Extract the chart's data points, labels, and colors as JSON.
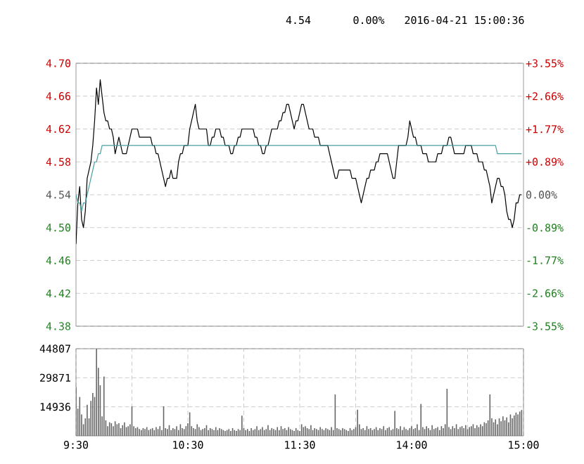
{
  "chart_data": [
    {
      "type": "line",
      "annotations": [
        "4.54",
        "0.00%",
        "2016-04-21 15:00:36"
      ],
      "categories": [
        null,
        null,
        null,
        null,
        null,
        null,
        null,
        null,
        null,
        null,
        null,
        null,
        null,
        null,
        null,
        null,
        null,
        null,
        null,
        null,
        null,
        null,
        null,
        null,
        null,
        null,
        null,
        null,
        null,
        null,
        null,
        null,
        null,
        null,
        null,
        null,
        null,
        null,
        null,
        null,
        null,
        null,
        null,
        null,
        null,
        null,
        null,
        null,
        null,
        null,
        null,
        null,
        null,
        null,
        null,
        null,
        null,
        null,
        null,
        null,
        null,
        null,
        null,
        null,
        null,
        null,
        null,
        null,
        null,
        null,
        null,
        null,
        null,
        null,
        null,
        null,
        null,
        null,
        null,
        null,
        null,
        null,
        null,
        null,
        null,
        null,
        null,
        null,
        null,
        null,
        null,
        null,
        null,
        null,
        null,
        null,
        null,
        null,
        null,
        null,
        null,
        null,
        null,
        null,
        null,
        null,
        null,
        null,
        null,
        null,
        null,
        null,
        null,
        null,
        null,
        null,
        null,
        null,
        null,
        null,
        null,
        null,
        null,
        null,
        null,
        null,
        null,
        null,
        null,
        null,
        null,
        null,
        null,
        null,
        null,
        null,
        null,
        null,
        null,
        null,
        null,
        null,
        null,
        null,
        null,
        null,
        null,
        null,
        null,
        null,
        null,
        null,
        null,
        null,
        null,
        null,
        null,
        null,
        null,
        null,
        null,
        null,
        null,
        null,
        null,
        null,
        null,
        null,
        null,
        null,
        null,
        null,
        null,
        null,
        null,
        null,
        null,
        null,
        null,
        null,
        null,
        null,
        null,
        null,
        null,
        null,
        null,
        null,
        null,
        null,
        null,
        null,
        null,
        null,
        null,
        null,
        null,
        null,
        null,
        null,
        null,
        null,
        null,
        null,
        null,
        null,
        null,
        null,
        null,
        null,
        null,
        null,
        null,
        null,
        null,
        null,
        null,
        null,
        null,
        null,
        null,
        null,
        null,
        null,
        null,
        null,
        null,
        null,
        null,
        null,
        null,
        null,
        null,
        null,
        null,
        null,
        null,
        null,
        null,
        null,
        null
      ],
      "ylim": [
        4.38,
        4.7
      ],
      "yticks": [
        {
          "value": 4.38,
          "label": "4.38"
        },
        {
          "value": 4.42,
          "label": "4.42"
        },
        {
          "value": 4.46,
          "label": "4.46"
        },
        {
          "value": 4.5,
          "label": "4.50"
        },
        {
          "value": 4.54,
          "label": "4.54"
        },
        {
          "value": 4.58,
          "label": "4.58"
        },
        {
          "value": 4.62,
          "label": "4.62"
        },
        {
          "value": 4.66,
          "label": "4.66"
        },
        {
          "value": 4.7,
          "label": "4.70"
        }
      ],
      "y2lim": [
        -3.55,
        3.55
      ],
      "y2ticks": [
        {
          "value": -3.55,
          "label": "-3.55%"
        },
        {
          "value": -2.66,
          "label": "-2.66%"
        },
        {
          "value": -1.77,
          "label": "-1.77%"
        },
        {
          "value": -0.89,
          "label": "-0.89%"
        },
        {
          "value": 0,
          "label": "0.00%"
        },
        {
          "value": 0.89,
          "label": "+0.89%"
        },
        {
          "value": 1.77,
          "label": "+1.77%"
        },
        {
          "value": 2.66,
          "label": "+2.66%"
        },
        {
          "value": 3.55,
          "label": "+3.55%"
        }
      ],
      "grid": true,
      "series": [
        {
          "color": "#000000",
          "values": [
            4.48,
            4.53,
            4.55,
            4.51,
            4.5,
            4.52,
            4.56,
            4.57,
            4.58,
            4.6,
            4.63,
            4.67,
            4.65,
            4.68,
            4.66,
            4.64,
            4.63,
            4.63,
            4.62,
            4.62,
            4.61,
            4.59,
            4.6,
            4.61,
            4.6,
            4.59,
            4.59,
            4.59,
            4.6,
            4.61,
            4.62,
            4.62,
            4.62,
            4.62,
            4.61,
            4.61,
            4.61,
            4.61,
            4.61,
            4.61,
            4.61,
            4.6,
            4.6,
            4.59,
            4.59,
            4.58,
            4.57,
            4.56,
            4.55,
            4.56,
            4.56,
            4.57,
            4.56,
            4.56,
            4.56,
            4.58,
            4.59,
            4.59,
            4.6,
            4.6,
            4.6,
            4.62,
            4.63,
            4.64,
            4.65,
            4.63,
            4.62,
            4.62,
            4.62,
            4.62,
            4.62,
            4.6,
            4.6,
            4.61,
            4.61,
            4.62,
            4.62,
            4.62,
            4.61,
            4.61,
            4.6,
            4.6,
            4.6,
            4.59,
            4.59,
            4.6,
            4.6,
            4.61,
            4.61,
            4.62,
            4.62,
            4.62,
            4.62,
            4.62,
            4.62,
            4.62,
            4.61,
            4.61,
            4.6,
            4.6,
            4.59,
            4.59,
            4.6,
            4.6,
            4.61,
            4.62,
            4.62,
            4.62,
            4.62,
            4.63,
            4.63,
            4.64,
            4.64,
            4.65,
            4.65,
            4.64,
            4.63,
            4.62,
            4.63,
            4.63,
            4.64,
            4.65,
            4.65,
            4.64,
            4.63,
            4.62,
            4.62,
            4.62,
            4.61,
            4.61,
            4.61,
            4.6,
            4.6,
            4.6,
            4.6,
            4.6,
            4.59,
            4.58,
            4.57,
            4.56,
            4.56,
            4.57,
            4.57,
            4.57,
            4.57,
            4.57,
            4.57,
            4.57,
            4.56,
            4.56,
            4.56,
            4.55,
            4.54,
            4.53,
            4.54,
            4.55,
            4.56,
            4.56,
            4.57,
            4.57,
            4.57,
            4.58,
            4.58,
            4.59,
            4.59,
            4.59,
            4.59,
            4.59,
            4.58,
            4.57,
            4.56,
            4.56,
            4.58,
            4.6,
            4.6,
            4.6,
            4.6,
            4.6,
            4.61,
            4.63,
            4.62,
            4.61,
            4.61,
            4.6,
            4.6,
            4.6,
            4.59,
            4.59,
            4.59,
            4.58,
            4.58,
            4.58,
            4.58,
            4.58,
            4.59,
            4.59,
            4.59,
            4.6,
            4.6,
            4.6,
            4.61,
            4.61,
            4.6,
            4.59,
            4.59,
            4.59,
            4.59,
            4.59,
            4.59,
            4.6,
            4.6,
            4.6,
            4.6,
            4.59,
            4.59,
            4.59,
            4.58,
            4.58,
            4.58,
            4.57,
            4.57,
            4.56,
            4.55,
            4.53,
            4.54,
            4.55,
            4.56,
            4.56,
            4.55,
            4.55,
            4.54,
            4.52,
            4.51,
            4.51,
            4.5,
            4.51,
            4.53,
            4.53,
            4.54,
            4.54,
            null
          ]
        },
        {
          "color": "#4a9e9e",
          "values": [
            4.54,
            4.53,
            4.53,
            4.52,
            4.53,
            4.53,
            4.54,
            4.55,
            4.56,
            4.57,
            4.58,
            4.58,
            4.59,
            4.59,
            4.6,
            4.6,
            4.6,
            4.6,
            4.6,
            4.6,
            4.6,
            4.6,
            4.6,
            4.6,
            4.6,
            4.6,
            4.6,
            4.6,
            4.6,
            4.6,
            4.6,
            4.6,
            4.6,
            4.6,
            4.6,
            4.6,
            4.6,
            4.6,
            4.6,
            4.6,
            4.6,
            4.6,
            4.6,
            4.6,
            4.6,
            4.6,
            4.6,
            4.6,
            4.6,
            4.6,
            4.6,
            4.6,
            4.6,
            4.6,
            4.6,
            4.6,
            4.6,
            4.6,
            4.6,
            4.6,
            4.6,
            4.6,
            4.6,
            4.6,
            4.6,
            4.6,
            4.6,
            4.6,
            4.6,
            4.6,
            4.6,
            4.6,
            4.6,
            4.6,
            4.6,
            4.6,
            4.6,
            4.6,
            4.6,
            4.6,
            4.6,
            4.6,
            4.6,
            4.6,
            4.6,
            4.6,
            4.6,
            4.6,
            4.6,
            4.6,
            4.6,
            4.6,
            4.6,
            4.6,
            4.6,
            4.6,
            4.6,
            4.6,
            4.6,
            4.6,
            4.6,
            4.6,
            4.6,
            4.6,
            4.6,
            4.6,
            4.6,
            4.6,
            4.6,
            4.6,
            4.6,
            4.6,
            4.6,
            4.6,
            4.6,
            4.6,
            4.6,
            4.6,
            4.6,
            4.6,
            4.6,
            4.6,
            4.6,
            4.6,
            4.6,
            4.6,
            4.6,
            4.6,
            4.6,
            4.6,
            4.6,
            4.6,
            4.6,
            4.6,
            4.6,
            4.6,
            4.6,
            4.6,
            4.6,
            4.6,
            4.6,
            4.6,
            4.6,
            4.6,
            4.6,
            4.6,
            4.6,
            4.6,
            4.6,
            4.6,
            4.6,
            4.6,
            4.6,
            4.6,
            4.6,
            4.6,
            4.6,
            4.6,
            4.6,
            4.6,
            4.6,
            4.6,
            4.6,
            4.6,
            4.6,
            4.6,
            4.6,
            4.6,
            4.6,
            4.6,
            4.6,
            4.6,
            4.6,
            4.6,
            4.6,
            4.6,
            4.6,
            4.6,
            4.6,
            4.6,
            4.6,
            4.6,
            4.6,
            4.6,
            4.6,
            4.6,
            4.6,
            4.6,
            4.6,
            4.6,
            4.6,
            4.6,
            4.6,
            4.6,
            4.6,
            4.6,
            4.6,
            4.6,
            4.6,
            4.6,
            4.6,
            4.6,
            4.6,
            4.6,
            4.6,
            4.6,
            4.6,
            4.6,
            4.6,
            4.6,
            4.6,
            4.6,
            4.6,
            4.6,
            4.6,
            4.6,
            4.6,
            4.6,
            4.6,
            4.6,
            4.6,
            4.6,
            4.6,
            4.6,
            4.6,
            4.6,
            4.59,
            4.59,
            4.59,
            4.59,
            4.59,
            4.59,
            4.59,
            4.59,
            4.59,
            4.59,
            4.59,
            4.59,
            4.59,
            4.59,
            null
          ]
        }
      ]
    },
    {
      "type": "bar",
      "color": "#666666",
      "categories": [
        "9:30",
        null,
        null,
        null,
        null,
        null,
        null,
        null,
        null,
        null,
        null,
        null,
        null,
        null,
        null,
        null,
        null,
        null,
        null,
        null,
        null,
        null,
        null,
        null,
        null,
        null,
        null,
        null,
        null,
        null,
        null,
        null,
        null,
        null,
        null,
        null,
        null,
        null,
        null,
        null,
        null,
        null,
        null,
        null,
        null,
        null,
        null,
        null,
        null,
        null,
        null,
        null,
        null,
        null,
        null,
        null,
        null,
        null,
        null,
        null,
        "10:30",
        null,
        null,
        null,
        null,
        null,
        null,
        null,
        null,
        null,
        null,
        null,
        null,
        null,
        null,
        null,
        null,
        null,
        null,
        null,
        null,
        null,
        null,
        null,
        null,
        null,
        null,
        null,
        null,
        null,
        null,
        null,
        null,
        null,
        null,
        null,
        null,
        null,
        null,
        null,
        null,
        null,
        null,
        null,
        null,
        null,
        null,
        null,
        null,
        null,
        null,
        null,
        null,
        null,
        null,
        null,
        null,
        null,
        null,
        null,
        "11:30",
        null,
        null,
        null,
        null,
        null,
        null,
        null,
        null,
        null,
        null,
        null,
        null,
        null,
        null,
        null,
        null,
        null,
        null,
        null,
        null,
        null,
        null,
        null,
        null,
        null,
        null,
        null,
        null,
        null,
        null,
        null,
        null,
        null,
        null,
        null,
        null,
        null,
        null,
        null,
        null,
        null,
        null,
        null,
        null,
        null,
        null,
        null,
        null,
        null,
        null,
        null,
        null,
        null,
        null,
        null,
        null,
        null,
        null,
        null,
        "14:00",
        null,
        null,
        null,
        null,
        null,
        null,
        null,
        null,
        null,
        null,
        null,
        null,
        null,
        null,
        null,
        null,
        null,
        null,
        null,
        null,
        null,
        null,
        null,
        null,
        null,
        null,
        null,
        null,
        null,
        null,
        null,
        null,
        null,
        null,
        null,
        null,
        null,
        null,
        null,
        null,
        null,
        null,
        null,
        null,
        null,
        null,
        null,
        null,
        null,
        null,
        null,
        null,
        null,
        null,
        null,
        null,
        null,
        null,
        null,
        "15:00"
      ],
      "ylim": [
        0,
        44807
      ],
      "yticks": [
        14936,
        29871,
        44807
      ],
      "grid": true,
      "values": [
        25000,
        14000,
        20000,
        11000,
        6000,
        9000,
        16000,
        9000,
        18000,
        22000,
        20000,
        44800,
        35000,
        26000,
        10000,
        30500,
        8000,
        5000,
        7000,
        6500,
        5000,
        7500,
        6000,
        6500,
        4000,
        5500,
        7000,
        4500,
        5000,
        6000,
        15200,
        5000,
        4000,
        4500,
        3500,
        3000,
        4000,
        3500,
        4500,
        3000,
        3500,
        4000,
        3000,
        4500,
        3500,
        5000,
        3000,
        15200,
        4000,
        3500,
        5500,
        3000,
        4000,
        3500,
        5000,
        3000,
        6000,
        4000,
        3500,
        5000,
        6500,
        12100,
        5000,
        4000,
        3500,
        6000,
        4500,
        3000,
        3500,
        4000,
        5500,
        3000,
        4000,
        3500,
        3000,
        4500,
        3000,
        4000,
        3500,
        3000,
        2500,
        3000,
        3500,
        2500,
        4000,
        3000,
        2500,
        3500,
        3000,
        10400,
        4000,
        3000,
        3500,
        2500,
        4000,
        3000,
        3500,
        5000,
        3000,
        3500,
        4500,
        3000,
        3500,
        5500,
        3000,
        4000,
        3500,
        3000,
        4500,
        3000,
        5000,
        3500,
        4000,
        3000,
        4500,
        3500,
        3000,
        2500,
        4000,
        3000,
        2500,
        6000,
        4500,
        5000,
        4000,
        3500,
        5500,
        3000,
        4000,
        3500,
        3000,
        4500,
        3500,
        3000,
        4000,
        3500,
        3000,
        4500,
        3000,
        21300,
        4000,
        3500,
        3000,
        4000,
        3500,
        3000,
        2500,
        4000,
        3000,
        3500,
        4500,
        13500,
        6000,
        3500,
        4000,
        3000,
        5000,
        3500,
        4000,
        3000,
        3500,
        4500,
        3000,
        4000,
        3500,
        5000,
        3000,
        4000,
        4500,
        3000,
        3500,
        12800,
        4000,
        3500,
        5000,
        3000,
        4500,
        3500,
        3000,
        4000,
        5000,
        3500,
        4000,
        6000,
        3000,
        16400,
        4500,
        3500,
        5000,
        4000,
        3000,
        5500,
        3500,
        4000,
        4500,
        3000,
        5000,
        4000,
        6000,
        24200,
        4500,
        3500,
        5000,
        4000,
        6000,
        3500,
        4500,
        5000,
        4000,
        5500,
        3500,
        4500,
        5000,
        6000,
        4000,
        5500,
        4500,
        6000,
        5000,
        7000,
        6500,
        8000,
        21300,
        9000,
        7000,
        8500,
        6000,
        9000,
        7500,
        10000,
        8000,
        9500,
        7000,
        11000,
        9000,
        10500,
        12000,
        11000,
        12500,
        13300,
        null
      ]
    }
  ]
}
